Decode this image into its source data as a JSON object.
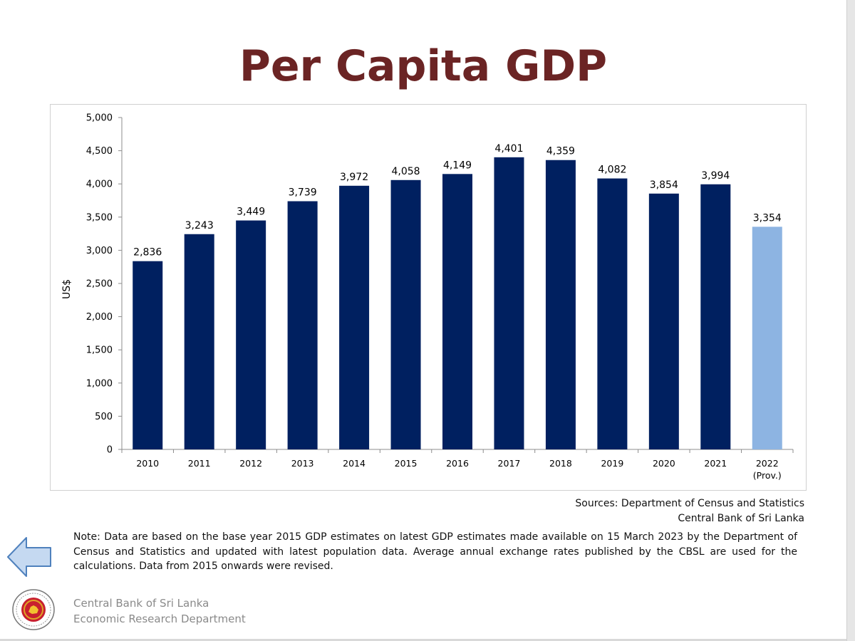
{
  "slide": {
    "title": "Per Capita GDP",
    "sources_line1": "Sources: Department of Census and Statistics",
    "sources_line2": "Central Bank of Sri Lanka",
    "note": "Note:  Data are based on the base year 2015 GDP estimates on latest GDP estimates made available on 15 March 2023 by the Department of Census and Statistics and updated with latest population data. Average annual exchange rates published by the CBSL are used for the calculations. Data from 2015 onwards were revised.",
    "footer_line1": "Central Bank of Sri Lanka",
    "footer_line2": "Economic Research Department",
    "back_icon": "left-arrow-icon",
    "seal_icon": "cbsl-seal-icon"
  },
  "colors": {
    "title": "#6b2424",
    "bar": "#002060",
    "bar_provisional": "#8db4e2",
    "arrow_fill": "#c5d9f1",
    "arrow_stroke": "#4f81bd"
  },
  "chart_data": {
    "type": "bar",
    "categories": [
      "2010",
      "2011",
      "2012",
      "2013",
      "2014",
      "2015",
      "2016",
      "2017",
      "2018",
      "2019",
      "2020",
      "2021",
      "2022\n(Prov.)"
    ],
    "values": [
      2836,
      3243,
      3449,
      3739,
      3972,
      4058,
      4149,
      4401,
      4359,
      4082,
      3854,
      3994,
      3354
    ],
    "data_labels": [
      "2,836",
      "3,243",
      "3,449",
      "3,739",
      "3,972",
      "4,058",
      "4,149",
      "4,401",
      "4,359",
      "4,082",
      "3,854",
      "3,994",
      "3,354"
    ],
    "provisional": [
      false,
      false,
      false,
      false,
      false,
      false,
      false,
      false,
      false,
      false,
      false,
      false,
      true
    ],
    "title": "",
    "xlabel": "",
    "ylabel": "US$",
    "ylim": [
      0,
      5000
    ],
    "yticks": [
      0,
      500,
      1000,
      1500,
      2000,
      2500,
      3000,
      3500,
      4000,
      4500,
      5000
    ],
    "ytick_labels": [
      "0",
      "500",
      "1,000",
      "1,500",
      "2,000",
      "2,500",
      "3,000",
      "3,500",
      "4,000",
      "4,500",
      "5,000"
    ],
    "grid": false,
    "legend": "none"
  }
}
